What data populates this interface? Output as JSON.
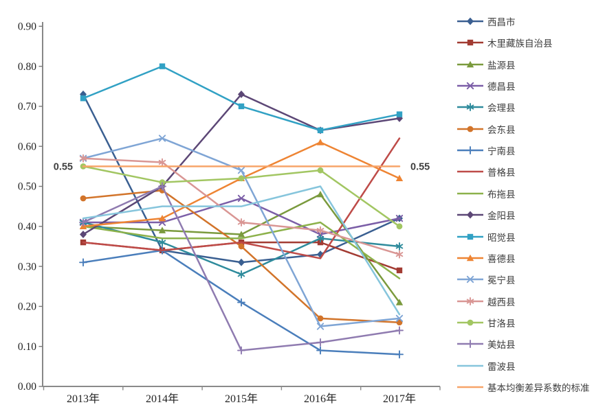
{
  "chart_data": {
    "type": "line",
    "title": "",
    "x_categories": [
      "2013年",
      "2014年",
      "2015年",
      "2016年",
      "2017年"
    ],
    "y_tick_labels": [
      "0.00",
      "0.10",
      "0.20",
      "0.30",
      "0.40",
      "0.50",
      "0.60",
      "0.70",
      "0.80",
      "0.90"
    ],
    "y_axis": {
      "min": 0.0,
      "max": 0.9,
      "step": 0.1
    },
    "grid": "off",
    "legend_position": "right",
    "annotations": [
      {
        "text": "0.55",
        "position": "left",
        "value": 0.55
      },
      {
        "text": "0.55",
        "position": "right",
        "value": 0.55
      }
    ],
    "series": [
      {
        "name": "西昌市",
        "color": "#3a5f91",
        "marker": "diamond",
        "values": [
          0.73,
          0.34,
          0.31,
          0.33,
          0.42
        ]
      },
      {
        "name": "木里藏族自治县",
        "color": "#a23b32",
        "marker": "square",
        "values": [
          0.36,
          0.34,
          0.36,
          0.36,
          0.29
        ]
      },
      {
        "name": "盐源县",
        "color": "#7a9a3d",
        "marker": "triangle",
        "values": [
          0.4,
          0.39,
          0.38,
          0.48,
          0.21
        ]
      },
      {
        "name": "德昌县",
        "color": "#7b5ea7",
        "marker": "x",
        "values": [
          0.41,
          0.41,
          0.47,
          0.38,
          0.42
        ]
      },
      {
        "name": "会理县",
        "color": "#2e8b9c",
        "marker": "asterisk",
        "values": [
          0.41,
          0.36,
          0.28,
          0.37,
          0.35
        ]
      },
      {
        "name": "会东县",
        "color": "#d2742a",
        "marker": "circle",
        "values": [
          0.47,
          0.49,
          0.35,
          0.17,
          0.16
        ]
      },
      {
        "name": "宁南县",
        "color": "#4a7ebb",
        "marker": "plus",
        "values": [
          0.31,
          0.34,
          0.21,
          0.09,
          0.08
        ]
      },
      {
        "name": "普格县",
        "color": "#be4b48",
        "marker": "none",
        "values": [
          0.36,
          0.34,
          0.36,
          0.32,
          0.62
        ]
      },
      {
        "name": "布拖县",
        "color": "#8cb14a",
        "marker": "none",
        "values": [
          0.4,
          0.37,
          0.37,
          0.41,
          0.27
        ]
      },
      {
        "name": "金阳县",
        "color": "#5c4776",
        "marker": "diamond",
        "values": [
          0.38,
          0.5,
          0.73,
          0.64,
          0.67
        ]
      },
      {
        "name": "昭觉县",
        "color": "#31a1c4",
        "marker": "square",
        "values": [
          0.72,
          0.8,
          0.7,
          0.64,
          0.68
        ]
      },
      {
        "name": "喜德县",
        "color": "#ee8433",
        "marker": "triangle",
        "values": [
          0.4,
          0.42,
          0.52,
          0.61,
          0.52
        ]
      },
      {
        "name": "冕宁县",
        "color": "#7fa5d5",
        "marker": "x",
        "values": [
          0.57,
          0.62,
          0.54,
          0.15,
          0.17
        ]
      },
      {
        "name": "越西县",
        "color": "#d99694",
        "marker": "asterisk",
        "values": [
          0.57,
          0.56,
          0.41,
          0.39,
          0.33
        ]
      },
      {
        "name": "甘洛县",
        "color": "#a2c662",
        "marker": "circle",
        "values": [
          0.55,
          0.51,
          0.52,
          0.54,
          0.4
        ]
      },
      {
        "name": "美姑县",
        "color": "#8f7bb0",
        "marker": "plus",
        "values": [
          0.41,
          0.5,
          0.09,
          0.11,
          0.14
        ]
      },
      {
        "name": "雷波县",
        "color": "#86c5dc",
        "marker": "none",
        "values": [
          0.42,
          0.45,
          0.45,
          0.5,
          0.18
        ]
      },
      {
        "name": "基本均衡差异系数的标准",
        "color": "#f7a469",
        "marker": "none",
        "values": [
          0.55,
          0.55,
          0.55,
          0.55,
          0.55
        ]
      }
    ]
  }
}
